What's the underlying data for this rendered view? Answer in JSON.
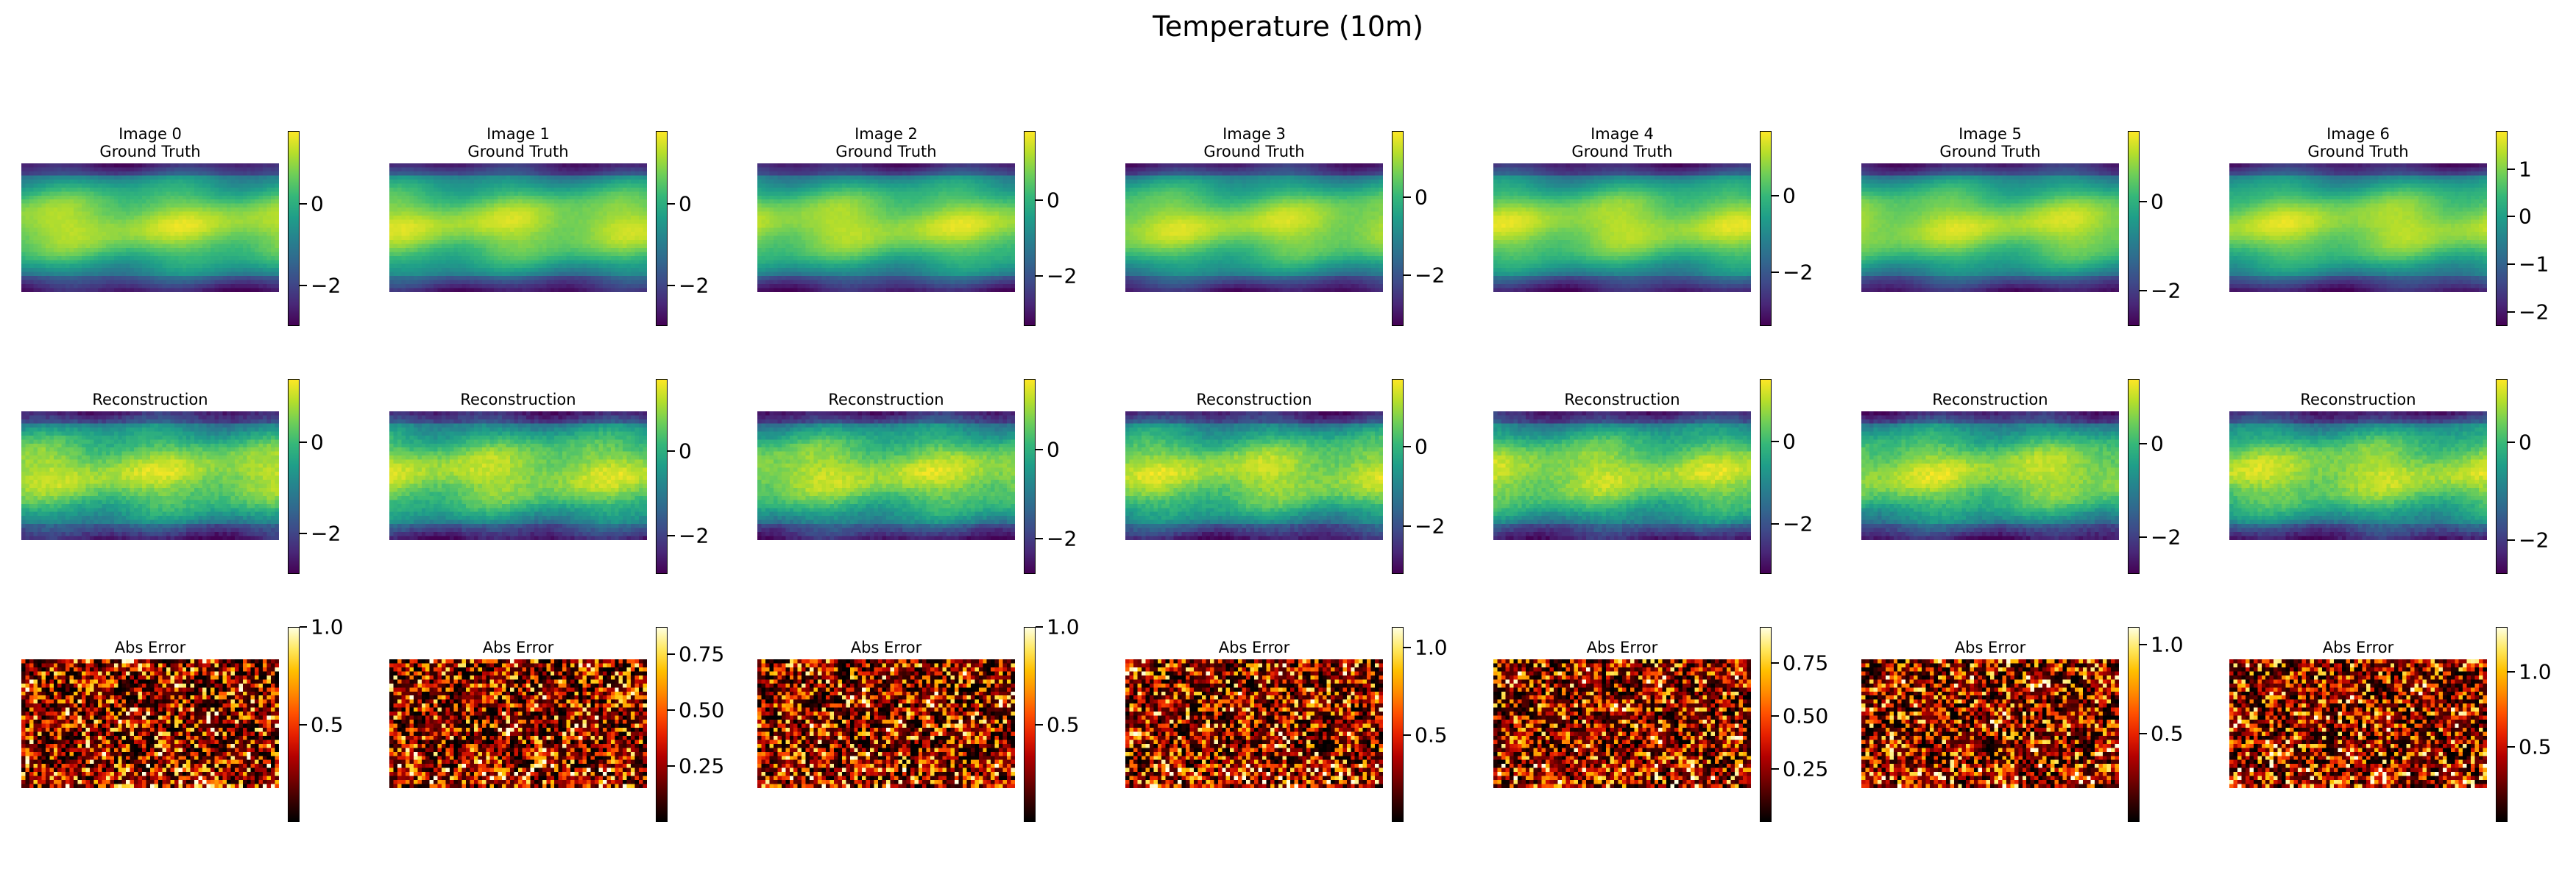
{
  "figure": {
    "suptitle": "Temperature (10m)"
  },
  "colormaps": {
    "viridis": [
      "#440154",
      "#482878",
      "#3e4a89",
      "#31688e",
      "#26828e",
      "#1f9e89",
      "#35b779",
      "#6ece58",
      "#b5de2b",
      "#fde725"
    ],
    "fire": [
      "#000000",
      "#3c0000",
      "#7a0000",
      "#b30000",
      "#e62000",
      "#ff5000",
      "#ff8c00",
      "#ffc000",
      "#ffe860",
      "#ffffe0"
    ]
  },
  "chart_data": [
    {
      "type": "heatmap",
      "row": 0,
      "col": 0,
      "title": "Image 0",
      "subtitle": "Ground Truth",
      "colormap": "viridis",
      "clim": [
        -3.0,
        1.8
      ],
      "colorbar_ticks": [
        0,
        -2
      ],
      "colorbar_tick_labels": [
        "0",
        "−2"
      ],
      "seed": 11
    },
    {
      "type": "heatmap",
      "row": 0,
      "col": 1,
      "title": "Image 1",
      "subtitle": "Ground Truth",
      "colormap": "viridis",
      "clim": [
        -3.0,
        1.8
      ],
      "colorbar_ticks": [
        0,
        -2
      ],
      "colorbar_tick_labels": [
        "0",
        "−2"
      ],
      "seed": 12
    },
    {
      "type": "heatmap",
      "row": 0,
      "col": 2,
      "title": "Image 2",
      "subtitle": "Ground Truth",
      "colormap": "viridis",
      "clim": [
        -3.3,
        1.8
      ],
      "colorbar_ticks": [
        0,
        -2
      ],
      "colorbar_tick_labels": [
        "0",
        "−2"
      ],
      "seed": 13
    },
    {
      "type": "heatmap",
      "row": 0,
      "col": 3,
      "title": "Image 3",
      "subtitle": "Ground Truth",
      "colormap": "viridis",
      "clim": [
        -3.3,
        1.7
      ],
      "colorbar_ticks": [
        0,
        -2
      ],
      "colorbar_tick_labels": [
        "0",
        "−2"
      ],
      "seed": 14
    },
    {
      "type": "heatmap",
      "row": 0,
      "col": 4,
      "title": "Image 4",
      "subtitle": "Ground Truth",
      "colormap": "viridis",
      "clim": [
        -3.4,
        1.7
      ],
      "colorbar_ticks": [
        0,
        -2
      ],
      "colorbar_tick_labels": [
        "0",
        "−2"
      ],
      "seed": 15
    },
    {
      "type": "heatmap",
      "row": 0,
      "col": 5,
      "title": "Image 5",
      "subtitle": "Ground Truth",
      "colormap": "viridis",
      "clim": [
        -2.8,
        1.6
      ],
      "colorbar_ticks": [
        0,
        -2
      ],
      "colorbar_tick_labels": [
        "0",
        "−2"
      ],
      "seed": 16
    },
    {
      "type": "heatmap",
      "row": 0,
      "col": 6,
      "title": "Image 6",
      "subtitle": "Ground Truth",
      "colormap": "viridis",
      "clim": [
        -2.3,
        1.8
      ],
      "colorbar_ticks": [
        1,
        0,
        -1,
        -2
      ],
      "colorbar_tick_labels": [
        "1",
        "0",
        "−1",
        "−2"
      ],
      "seed": 17
    },
    {
      "type": "heatmap",
      "row": 1,
      "col": 0,
      "title": "Reconstruction",
      "colormap": "viridis",
      "clim": [
        -2.9,
        1.4
      ],
      "colorbar_ticks": [
        0,
        -2
      ],
      "colorbar_tick_labels": [
        "0",
        "−2"
      ],
      "seed": 21
    },
    {
      "type": "heatmap",
      "row": 1,
      "col": 1,
      "title": "Reconstruction",
      "colormap": "viridis",
      "clim": [
        -2.9,
        1.7
      ],
      "colorbar_ticks": [
        0,
        -2
      ],
      "colorbar_tick_labels": [
        "0",
        "−2"
      ],
      "seed": 22
    },
    {
      "type": "heatmap",
      "row": 1,
      "col": 2,
      "title": "Reconstruction",
      "colormap": "viridis",
      "clim": [
        -2.8,
        1.6
      ],
      "colorbar_ticks": [
        0,
        -2
      ],
      "colorbar_tick_labels": [
        "0",
        "−2"
      ],
      "seed": 23
    },
    {
      "type": "heatmap",
      "row": 1,
      "col": 3,
      "title": "Reconstruction",
      "colormap": "viridis",
      "clim": [
        -3.2,
        1.7
      ],
      "colorbar_ticks": [
        0,
        -2
      ],
      "colorbar_tick_labels": [
        "0",
        "−2"
      ],
      "seed": 24
    },
    {
      "type": "heatmap",
      "row": 1,
      "col": 4,
      "title": "Reconstruction",
      "colormap": "viridis",
      "clim": [
        -3.2,
        1.5
      ],
      "colorbar_ticks": [
        0,
        -2
      ],
      "colorbar_tick_labels": [
        "0",
        "−2"
      ],
      "seed": 25
    },
    {
      "type": "heatmap",
      "row": 1,
      "col": 5,
      "title": "Reconstruction",
      "colormap": "viridis",
      "clim": [
        -2.8,
        1.4
      ],
      "colorbar_ticks": [
        0,
        -2
      ],
      "colorbar_tick_labels": [
        "0",
        "−2"
      ],
      "seed": 26
    },
    {
      "type": "heatmap",
      "row": 1,
      "col": 6,
      "title": "Reconstruction",
      "colormap": "viridis",
      "clim": [
        -2.7,
        1.3
      ],
      "colorbar_ticks": [
        0,
        -2
      ],
      "colorbar_tick_labels": [
        "0",
        "−2"
      ],
      "seed": 27
    },
    {
      "type": "heatmap",
      "row": 2,
      "col": 0,
      "title": "Abs Error",
      "colormap": "fire",
      "clim": [
        0.0,
        1.0
      ],
      "colorbar_ticks": [
        1.0,
        0.5
      ],
      "colorbar_tick_labels": [
        "1.0",
        "0.5"
      ],
      "seed": 31
    },
    {
      "type": "heatmap",
      "row": 2,
      "col": 1,
      "title": "Abs Error",
      "colormap": "fire",
      "clim": [
        0.0,
        0.87
      ],
      "colorbar_ticks": [
        0.75,
        0.5,
        0.25
      ],
      "colorbar_tick_labels": [
        "0.75",
        "0.50",
        "0.25"
      ],
      "seed": 32
    },
    {
      "type": "heatmap",
      "row": 2,
      "col": 2,
      "title": "Abs Error",
      "colormap": "fire",
      "clim": [
        0.0,
        1.0
      ],
      "colorbar_ticks": [
        1.0,
        0.5
      ],
      "colorbar_tick_labels": [
        "1.0",
        "0.5"
      ],
      "seed": 33
    },
    {
      "type": "heatmap",
      "row": 2,
      "col": 3,
      "title": "Abs Error",
      "colormap": "fire",
      "clim": [
        0.0,
        1.12
      ],
      "colorbar_ticks": [
        1.0,
        0.5
      ],
      "colorbar_tick_labels": [
        "1.0",
        "0.5"
      ],
      "seed": 34
    },
    {
      "type": "heatmap",
      "row": 2,
      "col": 4,
      "title": "Abs Error",
      "colormap": "fire",
      "clim": [
        0.0,
        0.92
      ],
      "colorbar_ticks": [
        0.75,
        0.5,
        0.25
      ],
      "colorbar_tick_labels": [
        "0.75",
        "0.50",
        "0.25"
      ],
      "seed": 35
    },
    {
      "type": "heatmap",
      "row": 2,
      "col": 5,
      "title": "Abs Error",
      "colormap": "fire",
      "clim": [
        0.0,
        1.1
      ],
      "colorbar_ticks": [
        1.0,
        0.5
      ],
      "colorbar_tick_labels": [
        "1.0",
        "0.5"
      ],
      "seed": 36
    },
    {
      "type": "heatmap",
      "row": 2,
      "col": 6,
      "title": "Abs Error",
      "colormap": "fire",
      "clim": [
        0.0,
        1.3
      ],
      "colorbar_ticks": [
        1.0,
        0.5
      ],
      "colorbar_tick_labels": [
        "1.0",
        "0.5"
      ],
      "seed": 37
    }
  ]
}
